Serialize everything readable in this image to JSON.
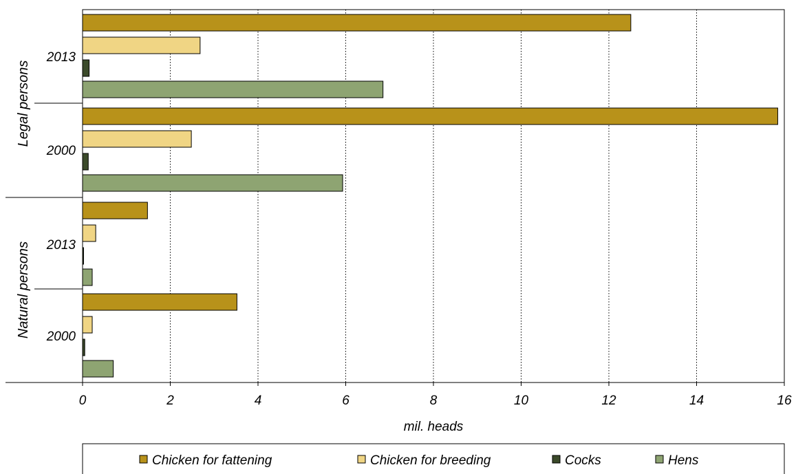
{
  "chart_data": {
    "type": "bar",
    "orientation": "horizontal",
    "xlabel": "mil. heads",
    "xlim": [
      0,
      16
    ],
    "xticks": [
      "0",
      "2",
      "4",
      "6",
      "8",
      "10",
      "12",
      "14",
      "16"
    ],
    "grid": "vertical dotted",
    "legend_position": "bottom",
    "groups": [
      {
        "name": "Legal persons",
        "categories": [
          "2013",
          "2000"
        ]
      },
      {
        "name": "Natural persons",
        "categories": [
          "2013",
          "2000"
        ]
      }
    ],
    "series": [
      {
        "name": "Chicken for fattening",
        "color": "#B8921A",
        "values": {
          "Legal persons 2013": 12.5,
          "Legal persons 2000": 15.85,
          "Natural persons 2013": 1.48,
          "Natural persons 2000": 3.52
        }
      },
      {
        "name": "Chicken for breeding",
        "color": "#F0D584",
        "values": {
          "Legal persons 2013": 2.68,
          "Legal persons 2000": 2.48,
          "Natural persons 2013": 0.3,
          "Natural persons 2000": 0.22
        }
      },
      {
        "name": "Cocks",
        "color": "#3B4A2A",
        "values": {
          "Legal persons 2013": 0.15,
          "Legal persons 2000": 0.13,
          "Natural persons 2013": 0.02,
          "Natural persons 2000": 0.05
        }
      },
      {
        "name": "Hens",
        "color": "#8EA472",
        "values": {
          "Legal persons 2013": 6.85,
          "Legal persons 2000": 5.93,
          "Natural persons 2013": 0.22,
          "Natural persons 2000": 0.7
        }
      }
    ]
  }
}
